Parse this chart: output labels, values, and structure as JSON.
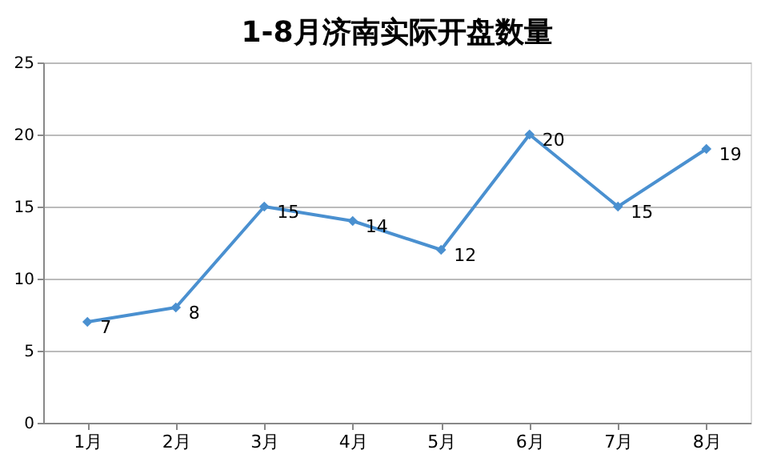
{
  "chart_data": {
    "type": "line",
    "title": "1-8月济南实际开盘数量",
    "categories": [
      "1月",
      "2月",
      "3月",
      "4月",
      "5月",
      "6月",
      "7月",
      "8月"
    ],
    "series": [
      {
        "color": "#4a90d0",
        "values": [
          7,
          8,
          15,
          14,
          12,
          20,
          15,
          19
        ]
      }
    ],
    "ylim": [
      0,
      25
    ],
    "yticks": [
      0,
      5,
      10,
      15,
      20,
      25
    ],
    "grid": "y",
    "marker": "diamond",
    "line_style": "solid",
    "data_labels": true
  }
}
